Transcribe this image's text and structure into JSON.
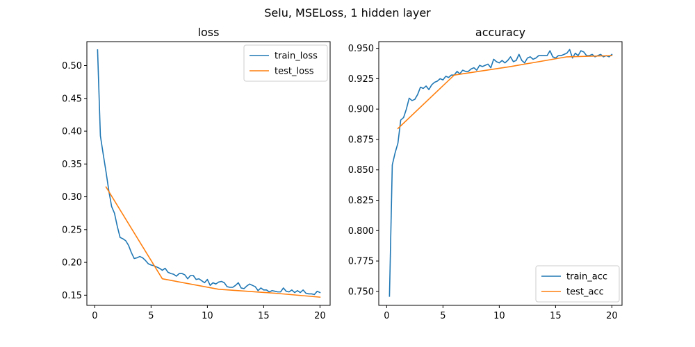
{
  "figure": {
    "suptitle": "Selu, MSELoss, 1 hidden layer"
  },
  "colors": {
    "blue": "#1f77b4",
    "orange": "#ff7f0e"
  },
  "chart_data": [
    {
      "type": "line",
      "title": "loss",
      "xlabel": "",
      "ylabel": "",
      "xlim": [
        -0.7,
        20.9
      ],
      "ylim": [
        0.1345,
        0.5365
      ],
      "xticks": [
        0,
        5,
        10,
        15,
        20
      ],
      "yticks": [
        0.15,
        0.2,
        0.25,
        0.3,
        0.35,
        0.4,
        0.45,
        0.5
      ],
      "ytick_decimals": 2,
      "legend": "top-right",
      "grid": false,
      "series": [
        {
          "name": "train_loss",
          "color": "#1f77b4",
          "x": [
            0.25,
            0.5,
            0.75,
            1,
            1.25,
            1.5,
            1.75,
            2,
            2.25,
            2.5,
            2.75,
            3,
            3.25,
            3.5,
            3.75,
            4,
            4.25,
            4.5,
            4.75,
            5,
            5.25,
            5.5,
            5.75,
            6,
            6.25,
            6.5,
            6.75,
            7,
            7.25,
            7.5,
            7.75,
            8,
            8.25,
            8.5,
            8.75,
            9,
            9.25,
            9.5,
            9.75,
            10,
            10.25,
            10.5,
            10.75,
            11,
            11.25,
            11.5,
            11.75,
            12,
            12.25,
            12.5,
            12.75,
            13,
            13.25,
            13.5,
            13.75,
            14,
            14.25,
            14.5,
            14.75,
            15,
            15.25,
            15.5,
            15.75,
            16,
            16.25,
            16.5,
            16.75,
            17,
            17.25,
            17.5,
            17.75,
            18,
            18.25,
            18.5,
            18.75,
            19,
            19.25,
            19.5,
            19.75,
            20
          ],
          "y": [
            0.524,
            0.393,
            0.365,
            0.338,
            0.309,
            0.285,
            0.275,
            0.255,
            0.238,
            0.236,
            0.233,
            0.226,
            0.215,
            0.206,
            0.207,
            0.209,
            0.207,
            0.203,
            0.198,
            0.196,
            0.195,
            0.193,
            0.191,
            0.188,
            0.191,
            0.185,
            0.183,
            0.182,
            0.179,
            0.183,
            0.183,
            0.181,
            0.175,
            0.18,
            0.18,
            0.174,
            0.175,
            0.172,
            0.169,
            0.174,
            0.165,
            0.169,
            0.167,
            0.17,
            0.171,
            0.169,
            0.163,
            0.162,
            0.162,
            0.165,
            0.169,
            0.161,
            0.16,
            0.164,
            0.167,
            0.165,
            0.163,
            0.157,
            0.161,
            0.158,
            0.158,
            0.155,
            0.157,
            0.156,
            0.155,
            0.155,
            0.161,
            0.156,
            0.155,
            0.158,
            0.154,
            0.157,
            0.154,
            0.158,
            0.153,
            0.152,
            0.152,
            0.151,
            0.156,
            0.154
          ]
        },
        {
          "name": "test_loss",
          "color": "#ff7f0e",
          "x": [
            1,
            6,
            11,
            16,
            20
          ],
          "y": [
            0.315,
            0.175,
            0.159,
            0.153,
            0.147
          ]
        }
      ]
    },
    {
      "type": "line",
      "title": "accuracy",
      "xlabel": "",
      "ylabel": "",
      "xlim": [
        -0.7,
        20.9
      ],
      "ylim": [
        0.7385,
        0.9555
      ],
      "xticks": [
        0,
        5,
        10,
        15,
        20
      ],
      "yticks": [
        0.75,
        0.775,
        0.8,
        0.825,
        0.85,
        0.875,
        0.9,
        0.925,
        0.95
      ],
      "ytick_decimals": 3,
      "legend": "bottom-right",
      "grid": false,
      "series": [
        {
          "name": "train_acc",
          "color": "#1f77b4",
          "x": [
            0.25,
            0.5,
            0.75,
            1,
            1.25,
            1.5,
            1.75,
            2,
            2.25,
            2.5,
            2.75,
            3,
            3.25,
            3.5,
            3.75,
            4,
            4.25,
            4.5,
            4.75,
            5,
            5.25,
            5.5,
            5.75,
            6,
            6.25,
            6.5,
            6.75,
            7,
            7.25,
            7.5,
            7.75,
            8,
            8.25,
            8.5,
            8.75,
            9,
            9.25,
            9.5,
            9.75,
            10,
            10.25,
            10.5,
            10.75,
            11,
            11.25,
            11.5,
            11.75,
            12,
            12.25,
            12.5,
            12.75,
            13,
            13.25,
            13.5,
            13.75,
            14,
            14.25,
            14.5,
            14.75,
            15,
            15.25,
            15.5,
            15.75,
            16,
            16.25,
            16.5,
            16.75,
            17,
            17.25,
            17.5,
            17.75,
            18,
            18.25,
            18.5,
            18.75,
            19,
            19.25,
            19.5,
            19.75,
            20
          ],
          "y": [
            0.746,
            0.854,
            0.864,
            0.872,
            0.891,
            0.893,
            0.9,
            0.909,
            0.907,
            0.908,
            0.912,
            0.918,
            0.917,
            0.919,
            0.916,
            0.92,
            0.922,
            0.923,
            0.925,
            0.924,
            0.927,
            0.926,
            0.928,
            0.928,
            0.931,
            0.929,
            0.932,
            0.931,
            0.931,
            0.933,
            0.934,
            0.932,
            0.936,
            0.935,
            0.936,
            0.937,
            0.934,
            0.941,
            0.939,
            0.938,
            0.94,
            0.938,
            0.94,
            0.943,
            0.939,
            0.94,
            0.945,
            0.94,
            0.938,
            0.942,
            0.943,
            0.941,
            0.942,
            0.944,
            0.944,
            0.944,
            0.944,
            0.948,
            0.943,
            0.942,
            0.944,
            0.944,
            0.945,
            0.946,
            0.949,
            0.942,
            0.946,
            0.944,
            0.948,
            0.947,
            0.944,
            0.944,
            0.945,
            0.943,
            0.944,
            0.945,
            0.943,
            0.944,
            0.943,
            0.945
          ]
        },
        {
          "name": "test_acc",
          "color": "#ff7f0e",
          "x": [
            1,
            6,
            11,
            16,
            20
          ],
          "y": [
            0.884,
            0.928,
            0.935,
            0.943,
            0.944
          ]
        }
      ]
    }
  ]
}
